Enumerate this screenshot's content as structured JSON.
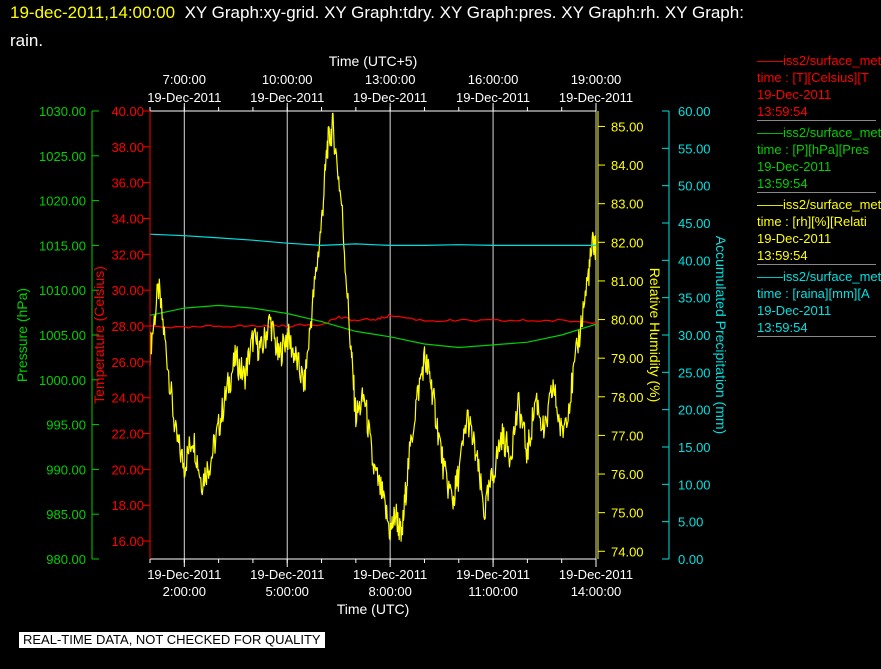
{
  "header": {
    "timestamp": "19-dec-2011,14:00:00",
    "graphs_line1": "XY Graph:xy-grid.  XY Graph:tdry.  XY Graph:pres.  XY Graph:rh.  XY Graph:",
    "graphs_line2": "rain."
  },
  "notice": "REAL-TIME DATA, NOT CHECKED FOR QUALITY",
  "colors": {
    "temperature": "#ff0000",
    "pressure": "#00d000",
    "humidity": "#ffff00",
    "precip": "#00e0e0",
    "axis_time": "#ffffff"
  },
  "legend": [
    {
      "line1": "——iss2/surface_met",
      "line2": "time : [T][Celsius][T",
      "line3": "19-Dec-2011",
      "line4": "13:59:54",
      "color": "#ff0000"
    },
    {
      "line1": "——iss2/surface_met",
      "line2": "time : [P][hPa][Pres",
      "line3": "19-Dec-2011",
      "line4": "13:59:54",
      "color": "#00d000"
    },
    {
      "line1": "——iss2/surface_met",
      "line2": "time : [rh][%][Relati",
      "line3": "19-Dec-2011",
      "line4": "13:59:54",
      "color": "#ffff00"
    },
    {
      "line1": "——iss2/surface_met",
      "line2": "time : [raina][mm][A",
      "line3": "19-Dec-2011",
      "line4": "13:59:54",
      "color": "#00e0e0"
    }
  ],
  "chart_data": {
    "type": "line",
    "xlabel_bottom": "Time (UTC)",
    "xlabel_top": "Time (UTC+5)",
    "x_range": [
      "19-Dec-2011 1:00:00",
      "19-Dec-2011 14:00:00"
    ],
    "x_ticks_bottom": [
      {
        "t": "2:00",
        "date": "19-Dec-2011",
        "time": "2:00:00"
      },
      {
        "t": "5:00",
        "date": "19-Dec-2011",
        "time": "5:00:00"
      },
      {
        "t": "8:00",
        "date": "19-Dec-2011",
        "time": "8:00:00"
      },
      {
        "t": "11:00",
        "date": "19-Dec-2011",
        "time": "11:00:00"
      },
      {
        "t": "14:00",
        "date": "19-Dec-2011",
        "time": "14:00:00"
      }
    ],
    "x_ticks_top": [
      {
        "t": "2:00",
        "date": "19-Dec-2011",
        "time": "7:00:00"
      },
      {
        "t": "5:00",
        "date": "19-Dec-2011",
        "time": "10:00:00"
      },
      {
        "t": "8:00",
        "date": "19-Dec-2011",
        "time": "13:00:00"
      },
      {
        "t": "11:00",
        "date": "19-Dec-2011",
        "time": "16:00:00"
      },
      {
        "t": "14:00",
        "date": "19-Dec-2011",
        "time": "19:00:00"
      }
    ],
    "axes": {
      "pressure": {
        "label": "Pressure (hPa)",
        "min": 980,
        "max": 1030,
        "ticks": [
          "980.00",
          "985.00",
          "990.00",
          "995.00",
          "1000.00",
          "1005.00",
          "1010.00",
          "1015.00",
          "1020.00",
          "1025.00",
          "1030.00"
        ]
      },
      "temperature": {
        "label": "Temperature (Celsius)",
        "min": 15,
        "max": 40,
        "ticks": [
          "16.00",
          "18.00",
          "20.00",
          "22.00",
          "24.00",
          "26.00",
          "28.00",
          "30.00",
          "32.00",
          "34.00",
          "36.00",
          "38.00",
          "40.00"
        ]
      },
      "humidity": {
        "label": "Relative Humidity (%)",
        "min": 73.8,
        "max": 85.4,
        "ticks": [
          "74.00",
          "75.00",
          "76.00",
          "77.00",
          "78.00",
          "79.00",
          "80.00",
          "81.00",
          "82.00",
          "83.00",
          "84.00",
          "85.00"
        ]
      },
      "precip": {
        "label": "Accumulated Precipitation (mm)",
        "min": 0,
        "max": 60,
        "ticks": [
          "0.00",
          "5.00",
          "10.00",
          "15.00",
          "20.00",
          "25.00",
          "30.00",
          "35.00",
          "40.00",
          "45.00",
          "50.00",
          "55.00",
          "60.00"
        ]
      }
    },
    "series": [
      {
        "name": "T (Celsius)",
        "axis": "temperature",
        "color": "#ff0000",
        "points": [
          [
            "1:00",
            28.0
          ],
          [
            "2:00",
            27.9
          ],
          [
            "3:00",
            28.0
          ],
          [
            "4:00",
            28.0
          ],
          [
            "5:00",
            28.0
          ],
          [
            "6:00",
            28.1
          ],
          [
            "6:30",
            28.5
          ],
          [
            "7:00",
            28.3
          ],
          [
            "7:40",
            28.4
          ],
          [
            "8:00",
            28.6
          ],
          [
            "9:00",
            28.3
          ],
          [
            "10:00",
            28.3
          ],
          [
            "11:00",
            28.3
          ],
          [
            "12:00",
            28.3
          ],
          [
            "13:00",
            28.3
          ],
          [
            "14:00",
            28.2
          ]
        ]
      },
      {
        "name": "P (hPa)",
        "axis": "pressure",
        "color": "#00d000",
        "points": [
          [
            "1:00",
            1007.2
          ],
          [
            "2:00",
            1008.0
          ],
          [
            "3:00",
            1008.3
          ],
          [
            "4:00",
            1008.0
          ],
          [
            "5:00",
            1007.4
          ],
          [
            "6:00",
            1006.5
          ],
          [
            "7:00",
            1005.4
          ],
          [
            "8:00",
            1004.8
          ],
          [
            "9:00",
            1004.0
          ],
          [
            "10:00",
            1003.6
          ],
          [
            "11:00",
            1003.9
          ],
          [
            "12:00",
            1004.2
          ],
          [
            "13:00",
            1005.0
          ],
          [
            "14:00",
            1006.2
          ]
        ]
      },
      {
        "name": "rh (%)",
        "axis": "humidity",
        "color": "#ffff00",
        "points": [
          [
            "1:00",
            79.2
          ],
          [
            "1:15",
            80.8
          ],
          [
            "1:30",
            79.0
          ],
          [
            "1:45",
            77.0
          ],
          [
            "2:00",
            76.2
          ],
          [
            "2:15",
            77.0
          ],
          [
            "2:30",
            75.8
          ],
          [
            "2:45",
            76.3
          ],
          [
            "3:00",
            77.2
          ],
          [
            "3:15",
            78.2
          ],
          [
            "3:30",
            79.0
          ],
          [
            "3:45",
            78.5
          ],
          [
            "4:00",
            79.5
          ],
          [
            "4:15",
            79.2
          ],
          [
            "4:30",
            80.0
          ],
          [
            "4:45",
            79.0
          ],
          [
            "5:00",
            79.6
          ],
          [
            "5:15",
            79.0
          ],
          [
            "5:30",
            78.3
          ],
          [
            "5:45",
            80.5
          ],
          [
            "6:00",
            82.5
          ],
          [
            "6:10",
            84.5
          ],
          [
            "6:20",
            85.0
          ],
          [
            "6:35",
            83.0
          ],
          [
            "6:50",
            79.5
          ],
          [
            "7:00",
            77.5
          ],
          [
            "7:15",
            78.0
          ],
          [
            "7:30",
            76.2
          ],
          [
            "7:45",
            75.5
          ],
          [
            "8:00",
            74.5
          ],
          [
            "8:10",
            75.0
          ],
          [
            "8:20",
            74.3
          ],
          [
            "8:30",
            76.0
          ],
          [
            "8:45",
            77.8
          ],
          [
            "9:00",
            79.0
          ],
          [
            "9:10",
            78.5
          ],
          [
            "9:20",
            77.5
          ],
          [
            "9:35",
            76.0
          ],
          [
            "9:50",
            75.3
          ],
          [
            "10:00",
            76.0
          ],
          [
            "10:15",
            77.5
          ],
          [
            "10:30",
            76.5
          ],
          [
            "10:45",
            75.0
          ],
          [
            "11:00",
            76.0
          ],
          [
            "11:15",
            77.0
          ],
          [
            "11:30",
            76.5
          ],
          [
            "11:45",
            77.8
          ],
          [
            "12:00",
            76.5
          ],
          [
            "12:15",
            78.0
          ],
          [
            "12:30",
            77.0
          ],
          [
            "12:45",
            78.3
          ],
          [
            "13:00",
            77.0
          ],
          [
            "13:15",
            78.0
          ],
          [
            "13:30",
            79.5
          ],
          [
            "13:45",
            81.0
          ],
          [
            "13:55",
            82.0
          ],
          [
            "14:00",
            81.8
          ]
        ]
      },
      {
        "name": "raina (mm)",
        "axis": "precip",
        "color": "#00e0e0",
        "points": [
          [
            "1:00",
            43.5
          ],
          [
            "2:00",
            43.3
          ],
          [
            "3:00",
            43.0
          ],
          [
            "4:00",
            42.7
          ],
          [
            "5:00",
            42.3
          ],
          [
            "6:00",
            42.0
          ],
          [
            "7:00",
            42.2
          ],
          [
            "8:00",
            42.0
          ],
          [
            "9:00",
            42.0
          ],
          [
            "10:00",
            42.1
          ],
          [
            "11:00",
            42.0
          ],
          [
            "12:00",
            42.0
          ],
          [
            "13:00",
            42.0
          ],
          [
            "14:00",
            42.0
          ]
        ]
      }
    ],
    "grid": "vertical"
  }
}
